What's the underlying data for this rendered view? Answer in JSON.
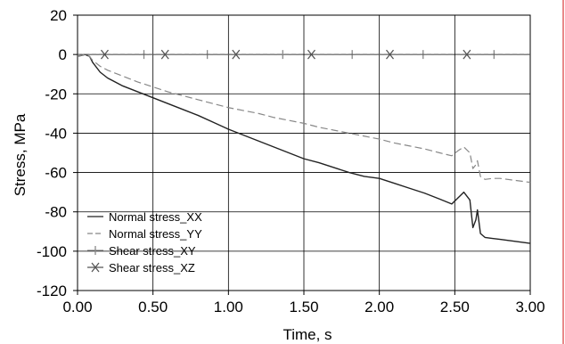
{
  "chart_data": {
    "type": "line",
    "xlabel": "Time, s",
    "ylabel": "Stress, MPa",
    "xlim": [
      0,
      3
    ],
    "ylim": [
      -120,
      20
    ],
    "x_ticks": [
      "0.00",
      "0.50",
      "1.00",
      "1.50",
      "2.00",
      "2.50",
      "3.00"
    ],
    "x_tick_values": [
      0,
      0.5,
      1,
      1.5,
      2,
      2.5,
      3
    ],
    "y_ticks": [
      "20",
      "0",
      "-20",
      "-40",
      "-60",
      "-80",
      "-100",
      "-120"
    ],
    "y_tick_values": [
      20,
      0,
      -20,
      -40,
      -60,
      -80,
      -100,
      -120
    ],
    "grid": true,
    "legend_position": "bottom-left",
    "right_border_color": "#e06060",
    "series": [
      {
        "name": "Normal stress_XX",
        "style": "solid",
        "color": "#222222",
        "x": [
          0.0,
          0.05,
          0.08,
          0.1,
          0.15,
          0.2,
          0.3,
          0.4,
          0.5,
          0.6,
          0.7,
          0.8,
          0.9,
          1.0,
          1.1,
          1.2,
          1.3,
          1.4,
          1.5,
          1.6,
          1.7,
          1.8,
          1.9,
          2.0,
          2.1,
          2.2,
          2.3,
          2.4,
          2.48,
          2.52,
          2.56,
          2.6,
          2.62,
          2.64,
          2.65,
          2.67,
          2.7,
          2.75,
          2.8,
          2.9,
          3.0
        ],
        "y": [
          -1,
          0,
          -1,
          -4,
          -9,
          -12,
          -16,
          -19,
          -22,
          -25,
          -28,
          -31,
          -34.5,
          -38,
          -41,
          -44,
          -47,
          -50,
          -53,
          -55,
          -57.5,
          -60,
          -62,
          -63,
          -65.5,
          -68,
          -70.5,
          -73.5,
          -76,
          -73,
          -70,
          -74,
          -88,
          -84,
          -79,
          -91,
          -93,
          -93.5,
          -94,
          -95,
          -96
        ]
      },
      {
        "name": "Normal stress_YY",
        "style": "dashed",
        "color": "#888888",
        "x": [
          0.0,
          0.05,
          0.08,
          0.1,
          0.15,
          0.2,
          0.3,
          0.4,
          0.5,
          0.6,
          0.7,
          0.8,
          0.9,
          1.0,
          1.1,
          1.2,
          1.3,
          1.4,
          1.5,
          1.6,
          1.7,
          1.8,
          1.9,
          2.0,
          2.1,
          2.2,
          2.3,
          2.4,
          2.48,
          2.52,
          2.56,
          2.6,
          2.62,
          2.64,
          2.65,
          2.67,
          2.7,
          2.75,
          2.8,
          2.9,
          3.0
        ],
        "y": [
          -1,
          0,
          -1,
          -3,
          -6,
          -8,
          -11,
          -14,
          -16.5,
          -19,
          -21,
          -23,
          -25,
          -27,
          -28.5,
          -30,
          -32,
          -33.5,
          -35,
          -37,
          -38.5,
          -40,
          -41.5,
          -43,
          -45,
          -46.5,
          -48,
          -50,
          -51.5,
          -49,
          -47,
          -50,
          -58,
          -56,
          -54,
          -62,
          -63.5,
          -63,
          -63,
          -64,
          -65
        ]
      },
      {
        "name": "Shear stress_XY",
        "style": "plus",
        "color": "#888888",
        "x": [
          0.0,
          3.0
        ],
        "y": [
          0,
          0
        ],
        "marker_x": [
          0.44,
          0.86,
          1.36,
          1.82,
          2.29,
          2.76
        ]
      },
      {
        "name": "Shear stress_XZ",
        "style": "cross",
        "color": "#555555",
        "x": [
          0.0,
          3.0
        ],
        "y": [
          0,
          0
        ],
        "marker_x": [
          0.18,
          0.58,
          1.05,
          1.55,
          2.07,
          2.58
        ]
      }
    ]
  }
}
